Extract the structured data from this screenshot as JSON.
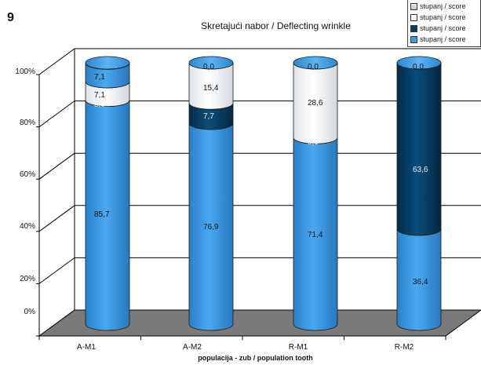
{
  "figure_number": "9",
  "chart_data": {
    "type": "bar",
    "stacked": true,
    "percent": true,
    "title": "Skretajući nabor / Deflecting wrinkle",
    "xlabel": "populacija - zub / population tooth",
    "ylabel": "",
    "ylim": [
      0,
      100
    ],
    "yticks": [
      "0%",
      "20%",
      "40%",
      "60%",
      "80%",
      "100%"
    ],
    "categories": [
      "A-M1",
      "A-M2",
      "R-M1",
      "R-M2"
    ],
    "series": [
      {
        "name": "stupanj / score",
        "level": 1,
        "color": "#3c9be3",
        "values": [
          85.7,
          76.9,
          71.4,
          36.4
        ],
        "labels": [
          "85,7",
          "76,9",
          "71,4",
          "36,4"
        ]
      },
      {
        "name": "stupanj / score",
        "level": 2,
        "color": "#063e65",
        "values": [
          0.0,
          7.7,
          0.0,
          63.6
        ],
        "labels": [
          "0,0",
          "7,7",
          "0,0",
          "63,6"
        ]
      },
      {
        "name": "stupanj / score",
        "level": 3,
        "color": "#ffffff",
        "values": [
          7.1,
          15.4,
          28.6,
          0.0
        ],
        "labels": [
          "7,1",
          "15,4",
          "28,6",
          "0,0"
        ]
      },
      {
        "name": "stupanj / score",
        "level": 4,
        "color": "#3c9be3",
        "values": [
          7.1,
          0.0,
          0.0,
          0.0
        ],
        "labels": [
          "7,1",
          "0,0",
          "0,0",
          "0,0"
        ]
      }
    ],
    "legend": [
      "stupanj / score",
      "stupanj / score",
      "stupanj / score",
      "stupanj / score"
    ],
    "legend_position": "top-right",
    "grid": true,
    "style": "3d-cylinder"
  }
}
